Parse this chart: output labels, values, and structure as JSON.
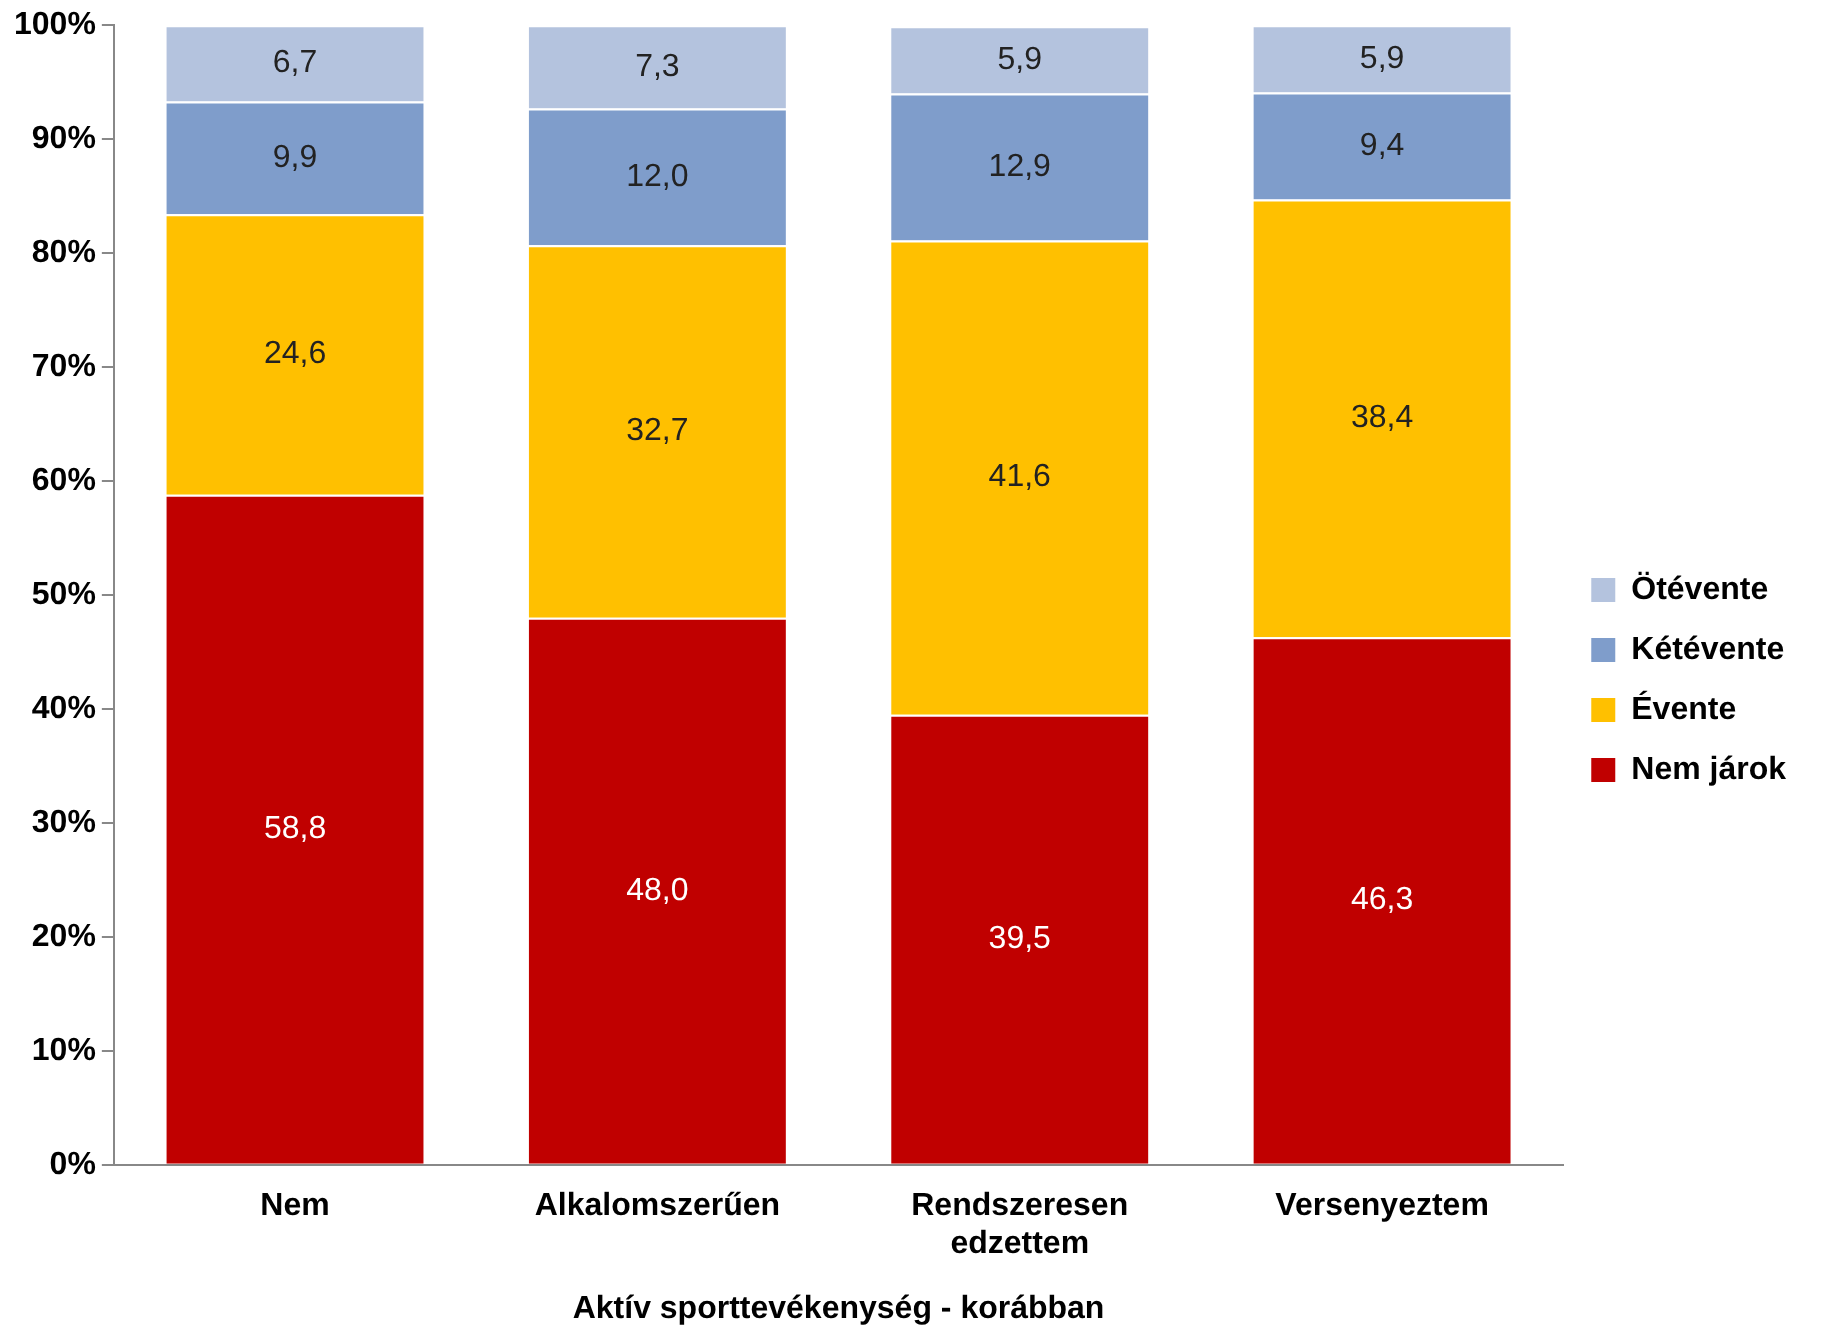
{
  "chart_data": {
    "type": "bar",
    "stacked": true,
    "xlabel": "Aktív sporttevékenység - korábban",
    "categories": [
      "Nem",
      "Alkalomszerűen",
      "Rendszeresen edzettem",
      "Versenyeztem"
    ],
    "series": [
      {
        "name": "Nem járok",
        "color": "#c00000",
        "values": [
          58.8,
          48.0,
          39.5,
          46.3
        ],
        "value_labels": [
          "58,8",
          "48,0",
          "39,5",
          "46,3"
        ]
      },
      {
        "name": "Évente",
        "color": "#ffc000",
        "values": [
          24.6,
          32.7,
          41.6,
          38.4
        ],
        "value_labels": [
          "24,6",
          "32,7",
          "41,6",
          "38,4"
        ]
      },
      {
        "name": "Kétévente",
        "color": "#7f9dcb",
        "values": [
          9.9,
          12.0,
          12.9,
          9.4
        ],
        "value_labels": [
          "9,9",
          "12,0",
          "12,9",
          "9,4"
        ]
      },
      {
        "name": "Ötévente",
        "color": "#b4c3de",
        "values": [
          6.7,
          7.3,
          5.9,
          5.9
        ],
        "value_labels": [
          "6,7",
          "7,3",
          "5,9",
          "5,9"
        ]
      }
    ],
    "ylim": [
      0,
      100
    ],
    "yticks": [
      {
        "value": 0,
        "label": "0%"
      },
      {
        "value": 10,
        "label": "10%"
      },
      {
        "value": 20,
        "label": "20%"
      },
      {
        "value": 30,
        "label": "30%"
      },
      {
        "value": 40,
        "label": "40%"
      },
      {
        "value": 50,
        "label": "50%"
      },
      {
        "value": 60,
        "label": "60%"
      },
      {
        "value": 70,
        "label": "70%"
      },
      {
        "value": 80,
        "label": "80%"
      },
      {
        "value": 90,
        "label": "90%"
      },
      {
        "value": 100,
        "label": "100%"
      }
    ],
    "grid": false,
    "legend": "right"
  }
}
